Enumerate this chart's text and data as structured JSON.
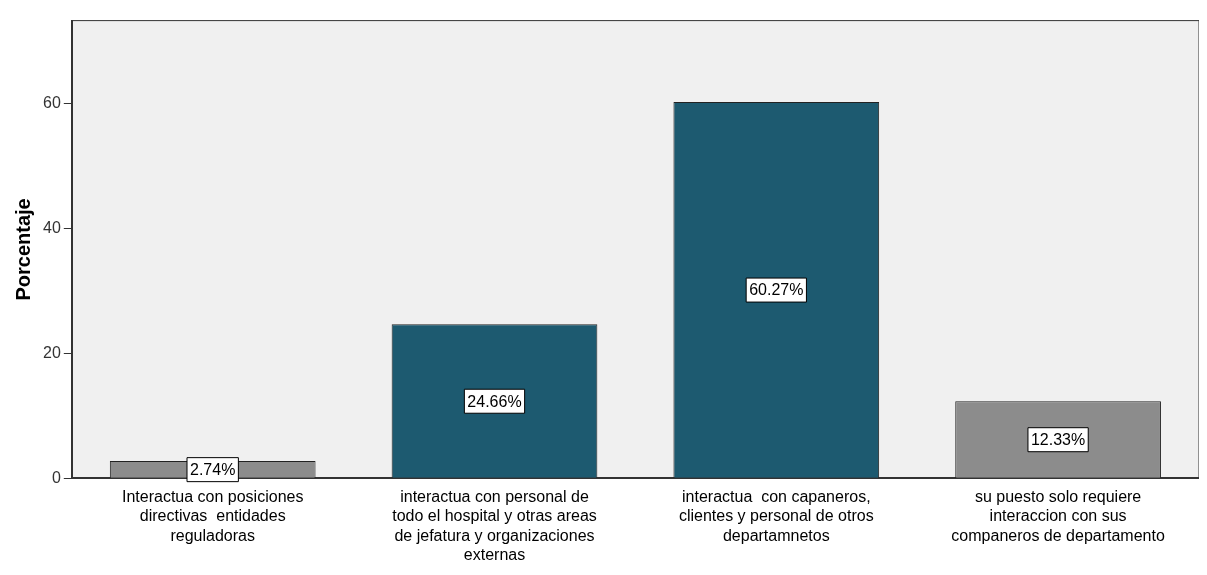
{
  "chart_data": {
    "type": "bar",
    "ylabel": "Porcentaje",
    "categories": [
      "Interactua con posiciones directivas  entidades reguladoras",
      "interactua con personal de todo el hospital y otras areas de jefatura y organizaciones externas",
      "interactua  con capaneros, clientes y personal de otros departamnetos",
      "su puesto solo requiere interaccion con sus companeros de departamento"
    ],
    "values": [
      2.74,
      24.66,
      60.27,
      12.33
    ],
    "colors": [
      "#8c8c8c",
      "#1d5a70",
      "#1d5a70",
      "#8c8c8c"
    ],
    "value_labels": [
      "2.74%",
      "24.66%",
      "60.27%",
      "12.33%"
    ],
    "ylim": [
      0,
      73.3
    ],
    "yticks": [
      0,
      20,
      40,
      60
    ],
    "grid": false,
    "legend": false
  }
}
